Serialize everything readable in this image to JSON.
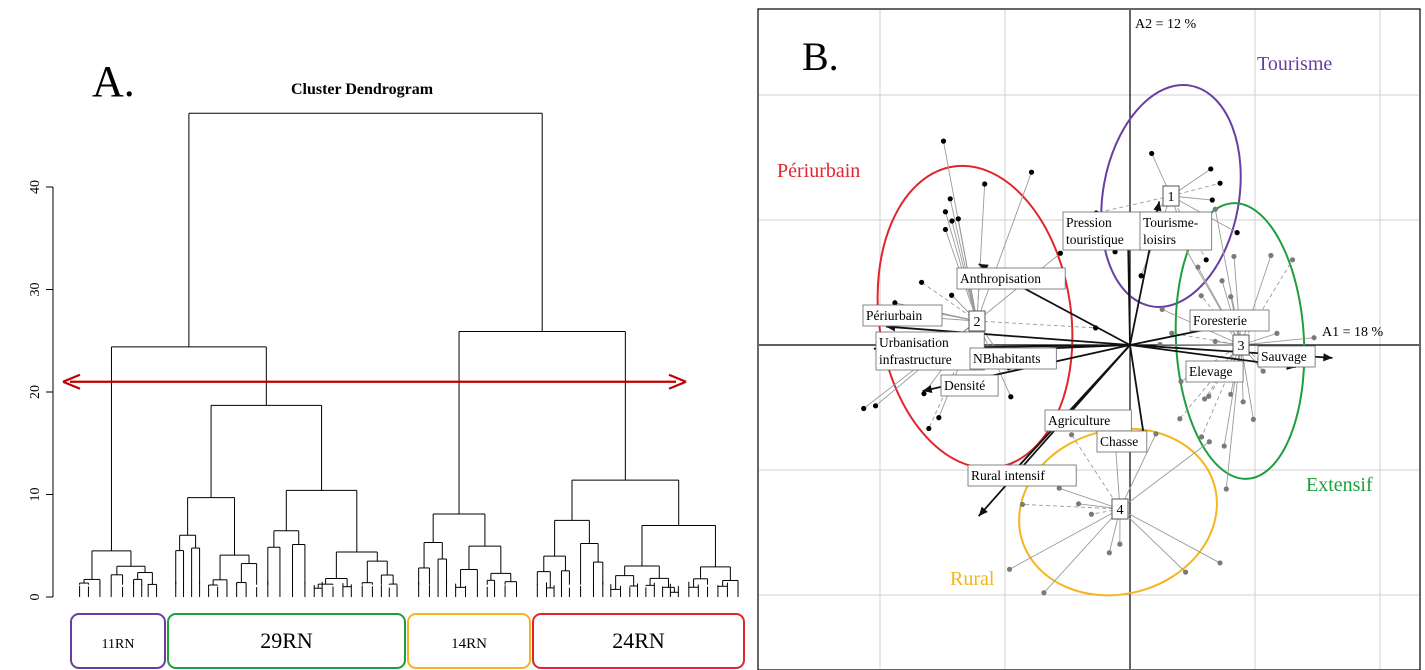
{
  "panel_a": {
    "letter": "A.",
    "colors": {
      "cut_line": "#c00000"
    },
    "chart_data": {
      "type": "dendrogram",
      "title": "Cluster Dendrogram",
      "ylim": [
        0,
        47
      ],
      "y_ticks": [
        "0",
        "10",
        "20",
        "30",
        "40"
      ],
      "cut_height": 21,
      "merges": [
        {
          "name": "root",
          "height": 47.2,
          "children": [
            "left",
            "right"
          ]
        },
        {
          "name": "left",
          "height": 24.4,
          "children": [
            "leftmost",
            "mid"
          ]
        },
        {
          "name": "right",
          "height": 25.9,
          "children": [
            "c14",
            "c24"
          ]
        },
        {
          "name": "mid",
          "height": 18.7,
          "children": [
            "m1",
            "m2"
          ]
        },
        {
          "name": "m1",
          "height": 9.7
        },
        {
          "name": "m2",
          "height": 10.4
        },
        {
          "name": "c14",
          "height": 8.1
        },
        {
          "name": "c24",
          "height": 11.4
        },
        {
          "name": "leftmost",
          "height": 4.5
        }
      ],
      "groups": [
        {
          "label": "11RN",
          "size": 11,
          "color": "#6a3ea1"
        },
        {
          "label": "29RN",
          "size": 29,
          "color": "#1e9e3e"
        },
        {
          "label": "14RN",
          "size": 14,
          "color": "#f4b51e"
        },
        {
          "label": "24RN",
          "size": 24,
          "color": "#e0262d"
        }
      ]
    }
  },
  "panel_b": {
    "letter": "B.",
    "axes": {
      "a1": "A1 = 18 %",
      "a2": "A2 = 12 %"
    },
    "colors": {
      "axis_line": "#000000",
      "grid": "#d0d0d0",
      "spoke": "#9a9a9a"
    },
    "chart_data": {
      "type": "scatter",
      "clusters": [
        {
          "name": "Tourisme",
          "id": "1",
          "color": "#6a3ea1",
          "center": [
            0.33,
            1.15
          ]
        },
        {
          "name": "Périurbain",
          "id": "2",
          "color": "#e0262d",
          "center": [
            -1.3,
            0.2
          ]
        },
        {
          "name": "Extensif",
          "id": "3",
          "color": "#1e9e3e",
          "center": [
            0.9,
            -0.02
          ]
        },
        {
          "name": "Rural",
          "id": "4",
          "color": "#f4b51e",
          "center": [
            -0.07,
            -1.4
          ]
        }
      ],
      "variables": [
        {
          "label": "Pression\ntouristique",
          "vector": [
            -0.01,
            0.72
          ]
        },
        {
          "label": "Tourisme-\nloisirs",
          "vector": [
            0.12,
            0.78
          ]
        },
        {
          "label": "Anthropisation",
          "vector": [
            -0.62,
            0.44
          ]
        },
        {
          "label": "Périurbain",
          "vector": [
            -1.0,
            0.1
          ]
        },
        {
          "label": "Urbanisation\ninfrastructure",
          "vector": [
            -1.05,
            -0.02
          ]
        },
        {
          "label": "NBhabitants",
          "vector": [
            -0.55,
            -0.03
          ]
        },
        {
          "label": "Densité",
          "vector": [
            -0.85,
            -0.25
          ]
        },
        {
          "label": "Foresterie",
          "vector": [
            0.48,
            0.13
          ]
        },
        {
          "label": "Sauvage",
          "vector": [
            0.83,
            -0.07
          ]
        },
        {
          "label": "Elevage",
          "vector": [
            0.68,
            -0.12
          ]
        },
        {
          "label": "Agriculture",
          "vector": [
            -0.52,
            -0.75
          ]
        },
        {
          "label": "Chasse",
          "vector": [
            0.06,
            -0.52
          ]
        },
        {
          "label": "Rural intensif",
          "vector": [
            -0.62,
            -0.93
          ]
        }
      ]
    }
  }
}
